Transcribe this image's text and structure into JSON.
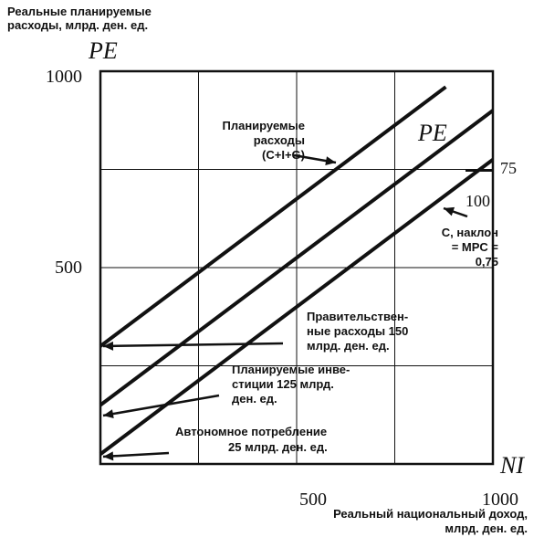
{
  "chart_data": {
    "type": "line",
    "ylabel_caption_line1": "Реальные планируемые",
    "ylabel_caption_line2": "расходы, млрд. ден. ед.",
    "ylabel_symbol": "PE",
    "xlabel_symbol": "NI",
    "xlabel_caption_line1": "Реальный национальный доход,",
    "xlabel_caption_line2": "млрд. ден. ед.",
    "x_ticks": [
      {
        "value": 500,
        "label": "500"
      },
      {
        "value": 1000,
        "label": "1000"
      }
    ],
    "y_ticks": [
      {
        "value": 500,
        "label": "500"
      },
      {
        "value": 1000,
        "label": "1000"
      }
    ],
    "xlim": [
      0,
      1000
    ],
    "ylim": [
      0,
      1000
    ],
    "grid": true,
    "series": [
      {
        "key": "c",
        "x": [
          0,
          1000
        ],
        "y": [
          25,
          775
        ]
      },
      {
        "key": "ci",
        "x": [
          0,
          1000
        ],
        "y": [
          150,
          900
        ]
      },
      {
        "key": "pe",
        "x": [
          0,
          880
        ],
        "y": [
          300,
          960
        ]
      }
    ],
    "annotations": {
      "pe_curve_label": "PE",
      "planned_line1": "Планируемые",
      "planned_line2": "расходы",
      "planned_line3": "(C+I+G)",
      "c_line1": "C, наклон",
      "c_line2": "= MPC =",
      "c_line3": "0,75",
      "slope_rise": "75",
      "slope_run": "100",
      "gov_line1": "Правительствен-",
      "gov_line2": "ные расходы 150",
      "gov_line3": "млрд. ден. ед.",
      "inv_line1": "Планируемые инве-",
      "inv_line2": "стиции 125 млрд.",
      "inv_line3": "ден. ед.",
      "auto_line1": "Автономное потребление",
      "auto_line2": "25 млрд. ден. ед."
    }
  }
}
